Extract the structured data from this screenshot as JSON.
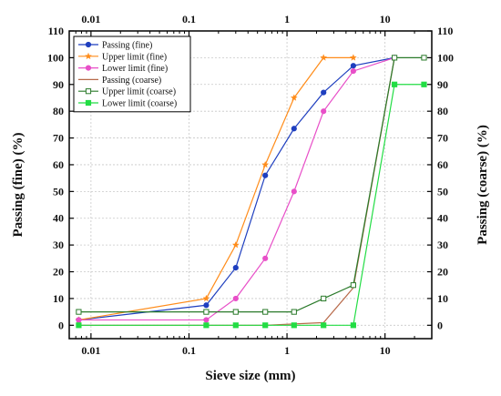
{
  "chart_data": {
    "type": "line",
    "xlabel": "Sieve size (mm)",
    "ylabel_left": "Passing (fine) (%)",
    "ylabel_right": "Passing (coarse) (%)",
    "x_scale": "log",
    "xlim": [
      0.006,
      30
    ],
    "ylim": [
      -5,
      110
    ],
    "x_ticks": [
      {
        "value": 0.01,
        "label": "0.01"
      },
      {
        "value": 0.1,
        "label": "0.1"
      },
      {
        "value": 1,
        "label": "1"
      },
      {
        "value": 10,
        "label": "10"
      }
    ],
    "y_ticks": [
      0,
      10,
      20,
      30,
      40,
      50,
      60,
      70,
      80,
      90,
      100,
      110
    ],
    "y_tick_labels": [
      "0",
      "10",
      "20",
      "30",
      "40",
      "50",
      "60",
      "70",
      "80",
      "90",
      "100",
      "110"
    ],
    "grid": true,
    "legend_position": "top-left",
    "series": [
      {
        "name": "Passing (fine)",
        "color": "#1f3fbf",
        "marker": "filled-circle",
        "x": [
          0.0075,
          0.15,
          0.3,
          0.6,
          1.18,
          2.36,
          4.75,
          12.5
        ],
        "y": [
          2,
          7.5,
          21.5,
          56,
          73.5,
          87,
          97,
          100
        ]
      },
      {
        "name": "Upper limit (fine)",
        "color": "#ff8c1a",
        "marker": "star",
        "x": [
          0.0075,
          0.15,
          0.3,
          0.6,
          1.18,
          2.36,
          4.75
        ],
        "y": [
          2,
          10,
          30,
          60,
          85,
          100,
          100
        ]
      },
      {
        "name": "Lower limit (fine)",
        "color": "#e84fc8",
        "marker": "filled-circle",
        "x": [
          0.0075,
          0.15,
          0.3,
          0.6,
          1.18,
          2.36,
          4.75,
          12.5
        ],
        "y": [
          2,
          2,
          10,
          25,
          50,
          80,
          95,
          100
        ]
      },
      {
        "name": "Passing (coarse)",
        "color": "#b86a4a",
        "marker": "none",
        "x": [
          0.0075,
          0.15,
          0.6,
          2.36,
          4.75,
          12.5
        ],
        "y": [
          0,
          0,
          0,
          1,
          14,
          100
        ]
      },
      {
        "name": "Upper limit (coarse)",
        "color": "#2a7a2a",
        "marker": "open-square",
        "x": [
          0.0075,
          0.15,
          0.3,
          0.6,
          1.18,
          2.36,
          4.75,
          12.5,
          25
        ],
        "y": [
          5,
          5,
          5,
          5,
          5,
          10,
          15,
          100,
          100
        ]
      },
      {
        "name": "Lower limit (coarse)",
        "color": "#22dd44",
        "marker": "filled-square",
        "x": [
          0.0075,
          0.15,
          0.3,
          0.6,
          1.18,
          2.36,
          4.75,
          12.5,
          25
        ],
        "y": [
          0,
          0,
          0,
          0,
          0,
          0,
          0,
          90,
          90
        ]
      }
    ]
  }
}
